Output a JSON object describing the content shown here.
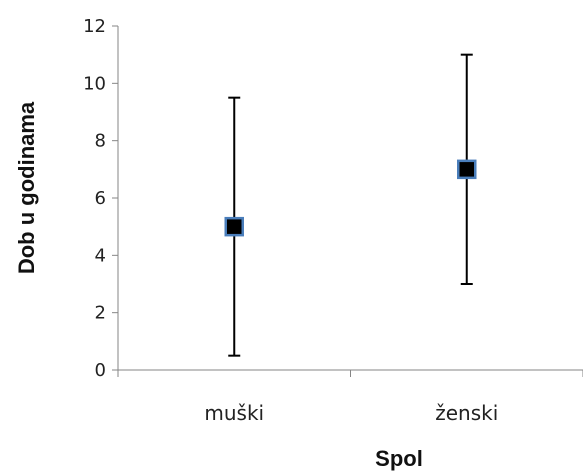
{
  "chart_data": {
    "type": "scatter",
    "title": "",
    "xlabel": "Spol",
    "ylabel": "Dob u godinama",
    "categories": [
      "muški",
      "ženski"
    ],
    "series": [
      {
        "values": [
          5,
          7
        ],
        "error_low": [
          0.5,
          3
        ],
        "error_high": [
          9.5,
          11
        ]
      }
    ],
    "ylim": [
      0,
      12
    ],
    "yticks": [
      "0",
      "2",
      "4",
      "6",
      "8",
      "10",
      "12"
    ],
    "grid": false,
    "legend": "none",
    "marker": "square",
    "colors": {
      "marker_fill": "#000000",
      "marker_border": "#4a7ebb",
      "error_bar": "#000000",
      "axis": "#868686"
    }
  }
}
